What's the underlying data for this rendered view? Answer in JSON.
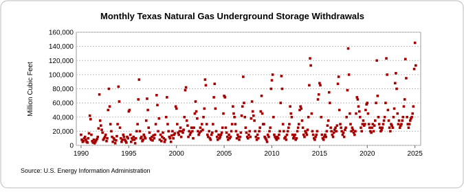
{
  "chart_data": {
    "type": "scatter",
    "title": "Monthly Texas Natural  Gas Underground Storage Withdrawals",
    "y_label": "Million Cubic Feet",
    "source": "Source: U.S. Energy Information Administration",
    "color": "#a50000",
    "grid": true,
    "xlim": [
      1989.5,
      2025.6
    ],
    "ylim": [
      0,
      160000
    ],
    "xticks": [
      1990,
      1995,
      2000,
      2005,
      2010,
      2015,
      2020,
      2025
    ],
    "yticks": [
      0,
      {
        "value": 20000,
        "label": "20,000"
      },
      {
        "value": 40000,
        "label": "40,000"
      },
      {
        "value": 60000,
        "label": "60,000"
      },
      {
        "value": 80000,
        "label": "80,000"
      },
      {
        "value": 100000,
        "label": "100,000"
      },
      {
        "value": 120000,
        "label": "120,000"
      },
      {
        "value": 140000,
        "label": "140,000"
      },
      {
        "value": 160000,
        "label": "160,000"
      }
    ],
    "x": [
      1990,
      1990.08,
      1990.17,
      1990.25,
      1990.33,
      1990.42,
      1990.5,
      1990.58,
      1990.67,
      1990.75,
      1990.83,
      1990.92,
      1991,
      1991.08,
      1991.17,
      1991.25,
      1991.33,
      1991.42,
      1991.5,
      1991.58,
      1991.67,
      1991.75,
      1991.83,
      1991.92,
      1992,
      1992.08,
      1992.17,
      1992.25,
      1992.33,
      1992.42,
      1992.5,
      1992.58,
      1992.67,
      1992.75,
      1992.83,
      1992.92,
      1993,
      1993.08,
      1993.17,
      1993.25,
      1993.33,
      1993.42,
      1993.5,
      1993.58,
      1993.67,
      1993.75,
      1993.83,
      1993.92,
      1994,
      1994.08,
      1994.17,
      1994.25,
      1994.33,
      1994.42,
      1994.5,
      1994.58,
      1994.67,
      1994.75,
      1994.83,
      1994.92,
      1995,
      1995.08,
      1995.17,
      1995.25,
      1995.33,
      1995.42,
      1995.5,
      1995.58,
      1995.67,
      1995.75,
      1995.83,
      1995.92,
      1996,
      1996.08,
      1996.17,
      1996.25,
      1996.33,
      1996.42,
      1996.5,
      1996.58,
      1996.67,
      1996.75,
      1996.83,
      1996.92,
      1997,
      1997.08,
      1997.17,
      1997.25,
      1997.33,
      1997.42,
      1997.5,
      1997.58,
      1997.67,
      1997.75,
      1997.83,
      1997.92,
      1998,
      1998.08,
      1998.17,
      1998.25,
      1998.33,
      1998.42,
      1998.5,
      1998.58,
      1998.67,
      1998.75,
      1998.83,
      1998.92,
      1999,
      1999.08,
      1999.17,
      1999.25,
      1999.33,
      1999.42,
      1999.5,
      1999.58,
      1999.67,
      1999.75,
      1999.83,
      1999.92,
      2000,
      2000.08,
      2000.17,
      2000.25,
      2000.33,
      2000.42,
      2000.5,
      2000.58,
      2000.67,
      2000.75,
      2000.83,
      2000.92,
      2001,
      2001.08,
      2001.17,
      2001.25,
      2001.33,
      2001.42,
      2001.5,
      2001.58,
      2001.67,
      2001.75,
      2001.83,
      2001.92,
      2002,
      2002.08,
      2002.17,
      2002.25,
      2002.33,
      2002.42,
      2002.5,
      2002.58,
      2002.67,
      2002.75,
      2002.83,
      2002.92,
      2003,
      2003.08,
      2003.17,
      2003.25,
      2003.33,
      2003.42,
      2003.5,
      2003.58,
      2003.67,
      2003.75,
      2003.83,
      2003.92,
      2004,
      2004.08,
      2004.17,
      2004.25,
      2004.33,
      2004.42,
      2004.5,
      2004.58,
      2004.67,
      2004.75,
      2004.83,
      2004.92,
      2005,
      2005.08,
      2005.17,
      2005.25,
      2005.33,
      2005.42,
      2005.5,
      2005.58,
      2005.67,
      2005.75,
      2005.83,
      2005.92,
      2006,
      2006.08,
      2006.17,
      2006.25,
      2006.33,
      2006.42,
      2006.5,
      2006.58,
      2006.67,
      2006.75,
      2006.83,
      2006.92,
      2007,
      2007.08,
      2007.17,
      2007.25,
      2007.33,
      2007.42,
      2007.5,
      2007.58,
      2007.67,
      2007.75,
      2007.83,
      2007.92,
      2008,
      2008.08,
      2008.17,
      2008.25,
      2008.33,
      2008.42,
      2008.5,
      2008.58,
      2008.67,
      2008.75,
      2008.83,
      2008.92,
      2009,
      2009.08,
      2009.17,
      2009.25,
      2009.33,
      2009.42,
      2009.5,
      2009.58,
      2009.67,
      2009.75,
      2009.83,
      2009.92,
      2010,
      2010.08,
      2010.17,
      2010.25,
      2010.33,
      2010.42,
      2010.5,
      2010.58,
      2010.67,
      2010.75,
      2010.83,
      2010.92,
      2011,
      2011.08,
      2011.17,
      2011.25,
      2011.33,
      2011.42,
      2011.5,
      2011.58,
      2011.67,
      2011.75,
      2011.83,
      2011.92,
      2012,
      2012.08,
      2012.17,
      2012.25,
      2012.33,
      2012.42,
      2012.5,
      2012.58,
      2012.67,
      2012.75,
      2012.83,
      2012.92,
      2013,
      2013.08,
      2013.17,
      2013.25,
      2013.33,
      2013.42,
      2013.5,
      2013.58,
      2013.67,
      2013.75,
      2013.83,
      2013.92,
      2014,
      2014.08,
      2014.17,
      2014.25,
      2014.33,
      2014.42,
      2014.5,
      2014.58,
      2014.67,
      2014.75,
      2014.83,
      2014.92,
      2015,
      2015.08,
      2015.17,
      2015.25,
      2015.33,
      2015.42,
      2015.5,
      2015.58,
      2015.67,
      2015.75,
      2015.83,
      2015.92,
      2016,
      2016.08,
      2016.17,
      2016.25,
      2016.33,
      2016.42,
      2016.5,
      2016.58,
      2016.67,
      2016.75,
      2016.83,
      2016.92,
      2017,
      2017.08,
      2017.17,
      2017.25,
      2017.33,
      2017.42,
      2017.5,
      2017.58,
      2017.67,
      2017.75,
      2017.83,
      2017.92,
      2018,
      2018.08,
      2018.17,
      2018.25,
      2018.33,
      2018.42,
      2018.5,
      2018.58,
      2018.67,
      2018.75,
      2018.83,
      2018.92,
      2019,
      2019.08,
      2019.17,
      2019.25,
      2019.33,
      2019.42,
      2019.5,
      2019.58,
      2019.67,
      2019.75,
      2019.83,
      2019.92,
      2020,
      2020.08,
      2020.17,
      2020.25,
      2020.33,
      2020.42,
      2020.5,
      2020.58,
      2020.67,
      2020.75,
      2020.83,
      2020.92,
      2021,
      2021.08,
      2021.17,
      2021.25,
      2021.33,
      2021.42,
      2021.5,
      2021.58,
      2021.67,
      2021.75,
      2021.83,
      2021.92,
      2022,
      2022.08,
      2022.17,
      2022.25,
      2022.33,
      2022.42,
      2022.5,
      2022.58,
      2022.67,
      2022.75,
      2022.83,
      2022.92,
      2023,
      2023.08,
      2023.17,
      2023.25,
      2023.33,
      2023.42,
      2023.5,
      2023.58,
      2023.67,
      2023.75,
      2023.83,
      2023.92,
      2024,
      2024.08,
      2024.17,
      2024.25,
      2024.33,
      2024.42,
      2024.5,
      2024.58,
      2024.67,
      2024.75,
      2024.83,
      2024.92,
      2025,
      2025.08
    ],
    "values": [
      15000,
      8000,
      5000,
      6000,
      10000,
      12000,
      8000,
      5000,
      4000,
      10000,
      17000,
      42000,
      37000,
      15000,
      6000,
      4000,
      8000,
      3000,
      5000,
      7000,
      9000,
      12000,
      24000,
      72000,
      35000,
      28000,
      22000,
      18000,
      8000,
      10000,
      12000,
      15000,
      6000,
      10000,
      50000,
      80000,
      55000,
      30000,
      20000,
      12000,
      5000,
      10000,
      8000,
      3000,
      7000,
      13000,
      30000,
      83000,
      62000,
      25000,
      10000,
      5000,
      8000,
      15000,
      12000,
      8000,
      6000,
      4000,
      12000,
      10000,
      48000,
      50000,
      15000,
      5000,
      10000,
      8000,
      12000,
      8000,
      3000,
      10000,
      20000,
      30000,
      65000,
      93000,
      20000,
      10000,
      12000,
      6000,
      8000,
      15000,
      12000,
      10000,
      35000,
      66000,
      50000,
      25000,
      18000,
      10000,
      8000,
      12000,
      7000,
      14000,
      10000,
      15000,
      30000,
      71000,
      57000,
      20000,
      38000,
      8000,
      15000,
      6000,
      12000,
      18000,
      10000,
      5000,
      8000,
      40000,
      68000,
      30000,
      20000,
      12000,
      10000,
      5000,
      14000,
      20000,
      10000,
      15000,
      17000,
      55000,
      52000,
      30000,
      18000,
      15000,
      20000,
      25000,
      12000,
      20000,
      18000,
      22000,
      40000,
      78000,
      82000,
      35000,
      28000,
      12000,
      20000,
      15000,
      18000,
      25000,
      20000,
      10000,
      25000,
      45000,
      62000,
      48000,
      38000,
      20000,
      15000,
      18000,
      25000,
      20000,
      30000,
      22000,
      40000,
      52000,
      93000,
      85000,
      30000,
      15000,
      12000,
      20000,
      10000,
      8000,
      15000,
      18000,
      30000,
      68000,
      87000,
      52000,
      20000,
      12000,
      8000,
      15000,
      10000,
      12000,
      15000,
      18000,
      25000,
      45000,
      70000,
      68000,
      25000,
      18000,
      12000,
      8000,
      15000,
      10000,
      12000,
      20000,
      30000,
      55000,
      45000,
      40000,
      30000,
      20000,
      10000,
      15000,
      12000,
      8000,
      12000,
      18000,
      42000,
      55000,
      97000,
      60000,
      40000,
      25000,
      18000,
      12000,
      10000,
      15000,
      20000,
      12000,
      38000,
      62000,
      48000,
      42000,
      35000,
      20000,
      12000,
      8000,
      15000,
      10000,
      20000,
      25000,
      48000,
      70000,
      45000,
      30000,
      30000,
      12000,
      10000,
      8000,
      5000,
      15000,
      12000,
      20000,
      25000,
      80000,
      92000,
      100000,
      40000,
      15000,
      12000,
      10000,
      8000,
      12000,
      10000,
      15000,
      20000,
      60000,
      98000,
      80000,
      30000,
      20000,
      10000,
      12000,
      8000,
      15000,
      20000,
      25000,
      30000,
      55000,
      45000,
      40000,
      15000,
      10000,
      12000,
      15000,
      8000,
      10000,
      20000,
      25000,
      30000,
      50000,
      55000,
      52000,
      35000,
      25000,
      15000,
      12000,
      20000,
      18000,
      15000,
      22000,
      40000,
      85000,
      123000,
      113000,
      45000,
      20000,
      15000,
      10000,
      8000,
      12000,
      15000,
      20000,
      65000,
      72000,
      88000,
      85000,
      40000,
      15000,
      10000,
      8000,
      12000,
      15000,
      12000,
      20000,
      28000,
      35000,
      75000,
      60000,
      25000,
      20000,
      15000,
      12000,
      18000,
      22000,
      25000,
      20000,
      28000,
      87000,
      97000,
      50000,
      30000,
      25000,
      20000,
      15000,
      18000,
      12000,
      22000,
      25000,
      40000,
      78000,
      137000,
      100000,
      45000,
      30000,
      20000,
      25000,
      22000,
      18000,
      15000,
      20000,
      45000,
      68000,
      65000,
      55000,
      48000,
      40000,
      25000,
      20000,
      30000,
      35000,
      28000,
      30000,
      50000,
      58000,
      60000,
      45000,
      30000,
      25000,
      20000,
      18000,
      25000,
      30000,
      20000,
      28000,
      35000,
      60000,
      120000,
      70000,
      40000,
      30000,
      25000,
      20000,
      22000,
      25000,
      30000,
      35000,
      40000,
      60000,
      123000,
      100000,
      50000,
      35000,
      25000,
      20000,
      30000,
      28000,
      25000,
      40000,
      52000,
      88000,
      102000,
      80000,
      45000,
      30000,
      35000,
      25000,
      28000,
      30000,
      35000,
      40000,
      55000,
      65000,
      122000,
      95000,
      40000,
      30000,
      25000,
      30000,
      35000,
      38000,
      40000,
      45000,
      55000,
      108000,
      145000,
      113000
    ]
  }
}
